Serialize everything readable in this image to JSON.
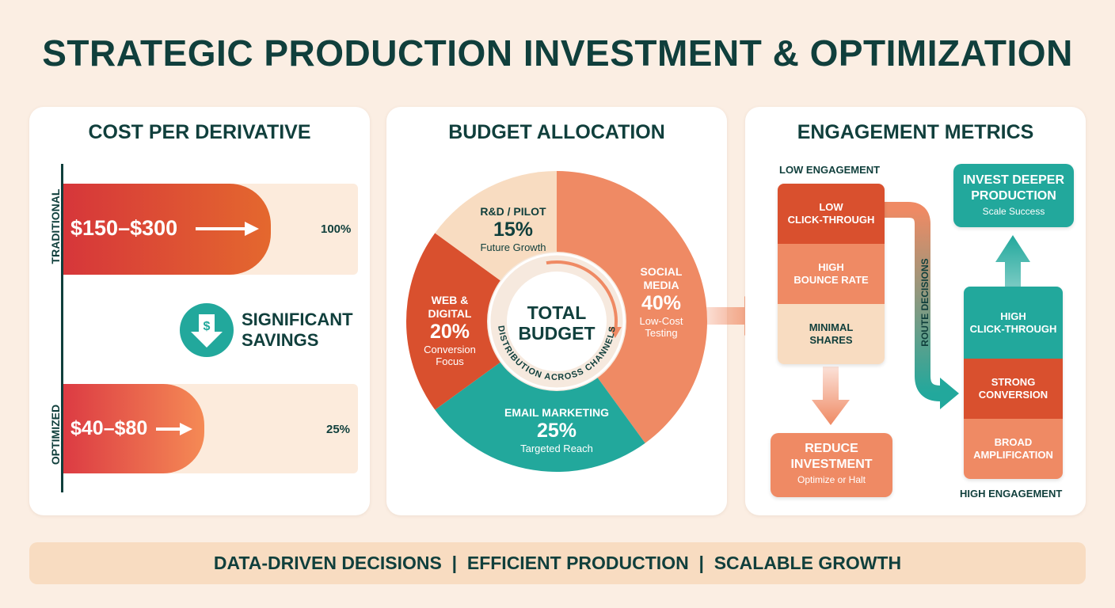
{
  "title": "STRATEGIC PRODUCTION INVESTMENT & OPTIMIZATION",
  "cost_panel": {
    "title": "COST PER DERIVATIVE",
    "traditional": {
      "axis_label": "TRADITIONAL",
      "value": "$150–$300",
      "percent_label": "100%",
      "percent": 100
    },
    "optimized": {
      "axis_label": "OPTIMIZED",
      "value": "$40–$80",
      "percent_label": "25%",
      "percent": 25
    },
    "savings_line1": "SIGNIFICANT",
    "savings_line2": "SAVINGS",
    "savings_icon": "dollar-down-arrow-icon"
  },
  "budget_panel": {
    "title": "BUDGET ALLOCATION",
    "center_line1": "TOTAL",
    "center_line2": "BUDGET",
    "ring_text": "DISTRIBUTION ACROSS CHANNELS",
    "slices": [
      {
        "name": "SOCIAL MEDIA",
        "name_l1": "SOCIAL",
        "name_l2": "MEDIA",
        "pct_label": "40%",
        "value": 40,
        "note": "Low-Cost Testing",
        "note_l1": "Low-Cost",
        "note_l2": "Testing",
        "color": "#ef8a64"
      },
      {
        "name": "EMAIL MARKETING",
        "pct_label": "25%",
        "value": 25,
        "note": "Targeted Reach",
        "color": "#22a89c"
      },
      {
        "name": "WEB & DIGITAL",
        "name_l1": "WEB &",
        "name_l2": "DIGITAL",
        "pct_label": "20%",
        "value": 20,
        "note": "Conversion Focus",
        "note_l1": "Conversion",
        "note_l2": "Focus",
        "color": "#d9502e"
      },
      {
        "name": "R&D / PILOT",
        "pct_label": "15%",
        "value": 15,
        "note": "Future Growth",
        "color": "#f8dcc1"
      }
    ]
  },
  "engagement_panel": {
    "title": "ENGAGEMENT METRICS",
    "low_label": "LOW ENGAGEMENT",
    "high_label": "HIGH ENGAGEMENT",
    "route_label": "ROUTE DECISIONS",
    "low_stack": [
      {
        "l1": "LOW",
        "l2": "CLICK-THROUGH"
      },
      {
        "l1": "HIGH",
        "l2": "BOUNCE RATE"
      },
      {
        "l1": "MINIMAL",
        "l2": "SHARES"
      }
    ],
    "high_stack": [
      {
        "l1": "HIGH",
        "l2": "CLICK-THROUGH"
      },
      {
        "l1": "STRONG",
        "l2": "CONVERSION"
      },
      {
        "l1": "BROAD",
        "l2": "AMPLIFICATION"
      }
    ],
    "reduce": {
      "title_l1": "REDUCE",
      "title_l2": "INVESTMENT",
      "sub": "Optimize or Halt"
    },
    "invest": {
      "title_l1": "INVEST DEEPER",
      "title_l2": "PRODUCTION",
      "sub": "Scale Success"
    }
  },
  "footer": {
    "item1": "DATA-DRIVEN DECISIONS",
    "item2": "EFFICIENT PRODUCTION",
    "item3": "SCALABLE GROWTH",
    "separator": "|"
  },
  "colors": {
    "dark_teal": "#103f3c",
    "teal": "#22a89c",
    "red": "#d9502e",
    "orange": "#ef8a64",
    "peach": "#f8dcc1",
    "background": "#fbeee3"
  }
}
